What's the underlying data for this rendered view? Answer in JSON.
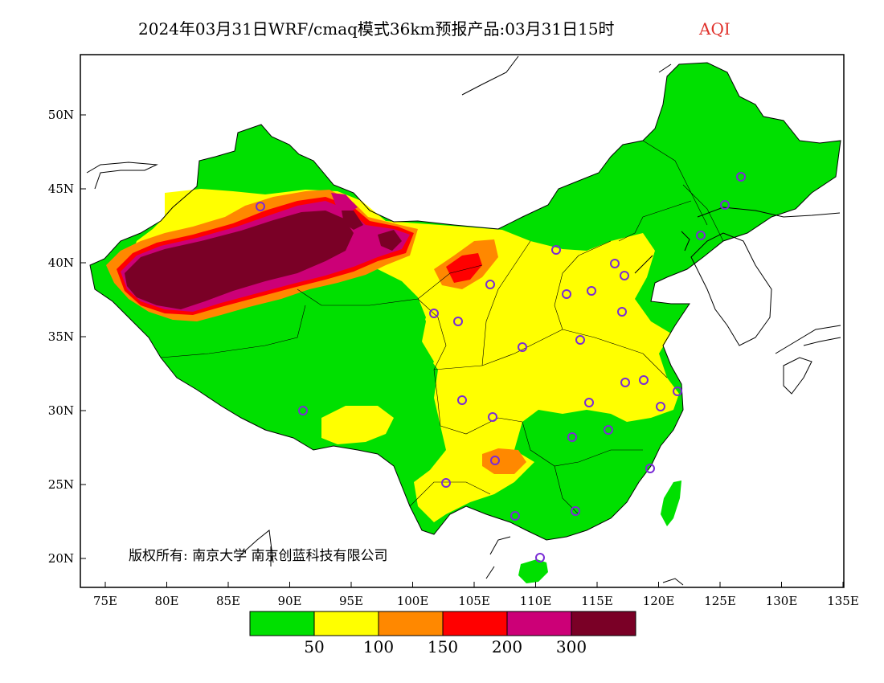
{
  "title": {
    "main": "2024年03月31日WRF/cmaq模式36km预报产品:03月31日15时",
    "variable": "AQI"
  },
  "axes": {
    "x_ticks": [
      "75E",
      "80E",
      "85E",
      "90E",
      "95E",
      "100E",
      "105E",
      "110E",
      "115E",
      "120E",
      "125E",
      "130E",
      "135E"
    ],
    "y_ticks": [
      "50N",
      "45N",
      "40N",
      "35N",
      "30N",
      "25N",
      "20N"
    ]
  },
  "legend": {
    "colors": [
      "#00e000",
      "#ffff00",
      "#ff8800",
      "#ff0000",
      "#cc0077",
      "#7a0026"
    ],
    "labels": [
      "50",
      "100",
      "150",
      "200",
      "300"
    ]
  },
  "copyright": "版权所有: 南京大学  南京创蓝科技有限公司",
  "map_colors": {
    "good": "#00e000",
    "moderate": "#ffff00",
    "usg": "#ff8800",
    "unhealthy": "#ff0000",
    "very_unhealthy": "#cc0077",
    "hazardous": "#7a0026",
    "station_marker": "#7a2bd6"
  }
}
